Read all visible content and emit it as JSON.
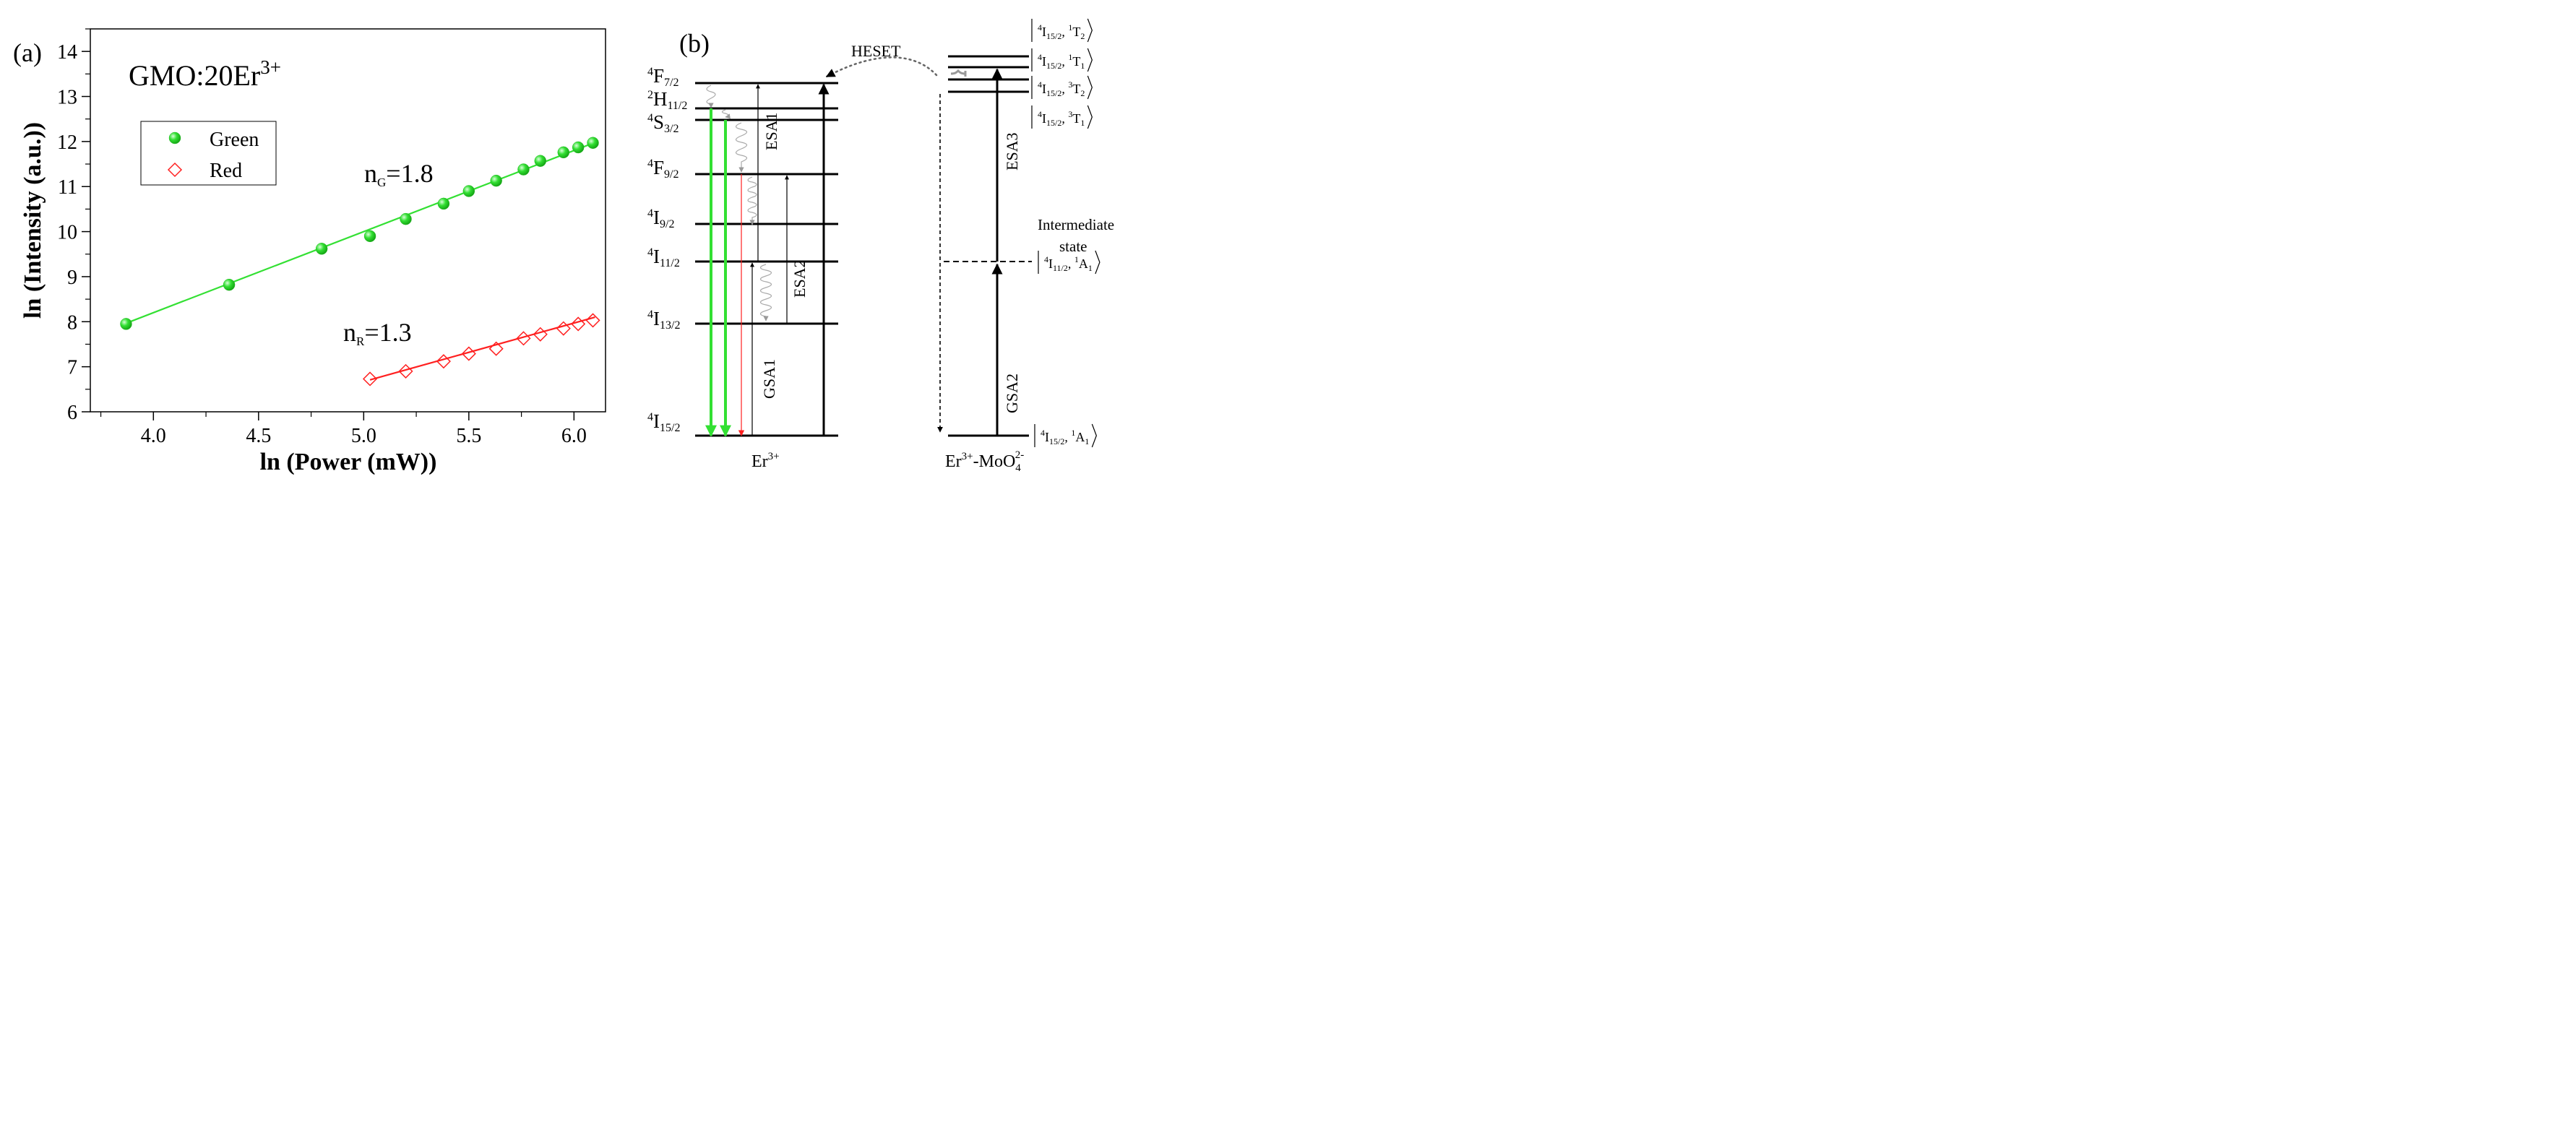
{
  "colors": {
    "green": "#33e033",
    "red": "#ff2020",
    "black": "#000000",
    "gray": "#999999"
  },
  "panel_a": {
    "label": "(a)",
    "sample": "GMO:20Er",
    "sample_sup": "3+",
    "legend": {
      "green": "Green",
      "red": "Red"
    },
    "slope_green": {
      "base": "n",
      "sub": "G",
      "value": "=1.8"
    },
    "slope_red": {
      "base": "n",
      "sub": "R",
      "value": "=1.3"
    }
  },
  "chart_data": {
    "type": "scatter",
    "title": "",
    "xlabel": "ln (Power (mW))",
    "ylabel": "ln (Intensity (a.u.))",
    "xlim": [
      3.7,
      6.15
    ],
    "ylim": [
      6,
      14.5
    ],
    "xticks": [
      "4.0",
      "4.5",
      "5.0",
      "5.5",
      "6.0"
    ],
    "yticks": [
      "6",
      "7",
      "8",
      "9",
      "10",
      "11",
      "12",
      "13",
      "14"
    ],
    "series": [
      {
        "name": "Green",
        "x": [
          3.87,
          4.36,
          4.8,
          5.03,
          5.2,
          5.38,
          5.5,
          5.63,
          5.76,
          5.84,
          5.95,
          6.02,
          6.09
        ],
        "y": [
          7.95,
          8.82,
          9.62,
          9.9,
          10.28,
          10.62,
          10.9,
          11.13,
          11.38,
          11.57,
          11.76,
          11.87,
          11.97
        ],
        "fit": {
          "slope": 1.8,
          "intercept": 1.0,
          "x_range": [
            3.87,
            6.1
          ]
        }
      },
      {
        "name": "Red",
        "x": [
          5.03,
          5.2,
          5.38,
          5.5,
          5.63,
          5.76,
          5.84,
          5.95,
          6.02,
          6.09
        ],
        "y": [
          6.73,
          6.9,
          7.12,
          7.29,
          7.4,
          7.63,
          7.72,
          7.85,
          7.95,
          8.03
        ],
        "fit": {
          "slope": 1.3,
          "intercept": 0.17,
          "x_range": [
            5.03,
            6.1
          ]
        }
      }
    ]
  },
  "panel_b": {
    "label": "(b)",
    "levels": [
      {
        "base": "F",
        "sup": "4",
        "sub": "7/2"
      },
      {
        "base": "H",
        "sup": "2",
        "sub": "11/2"
      },
      {
        "base": "S",
        "sup": "4",
        "sub": "3/2"
      },
      {
        "base": "F",
        "sup": "4",
        "sub": "9/2"
      },
      {
        "base": "I",
        "sup": "4",
        "sub": "9/2"
      },
      {
        "base": "I",
        "sup": "4",
        "sub": "11/2"
      },
      {
        "base": "I",
        "sup": "4",
        "sub": "13/2"
      },
      {
        "base": "I",
        "sup": "4",
        "sub": "15/2"
      }
    ],
    "process_labels": {
      "heset": "HESET",
      "esa1": "ESA1",
      "esa2": "ESA2",
      "esa3": "ESA3",
      "gsa1": "GSA1",
      "gsa2": "GSA2"
    },
    "intermediate": {
      "line1": "Intermediate",
      "line2": "state"
    },
    "states": [
      {
        "l1": "4",
        "l2": "I",
        "l3": "15/2",
        "l4": "1",
        "l5": "T",
        "l6": "2"
      },
      {
        "l1": "4",
        "l2": "I",
        "l3": "15/2",
        "l4": "1",
        "l5": "T",
        "l6": "1"
      },
      {
        "l1": "4",
        "l2": "I",
        "l3": "15/2",
        "l4": "3",
        "l5": "T",
        "l6": "2"
      },
      {
        "l1": "4",
        "l2": "I",
        "l3": "15/2",
        "l4": "3",
        "l5": "T",
        "l6": "1"
      },
      {
        "l1": "4",
        "l2": "I",
        "l3": "11/2",
        "l4": "1",
        "l5": "A",
        "l6": "1"
      },
      {
        "l1": "4",
        "l2": "I",
        "l3": "15/2",
        "l4": "1",
        "l5": "A",
        "l6": "1"
      }
    ],
    "er_label": {
      "base": "Er",
      "sup": "3+"
    },
    "complex_label": {
      "base1": "Er",
      "sup1": "3+",
      "mid": "-MoO",
      "sub2": "4",
      "sup2": "2-"
    }
  }
}
